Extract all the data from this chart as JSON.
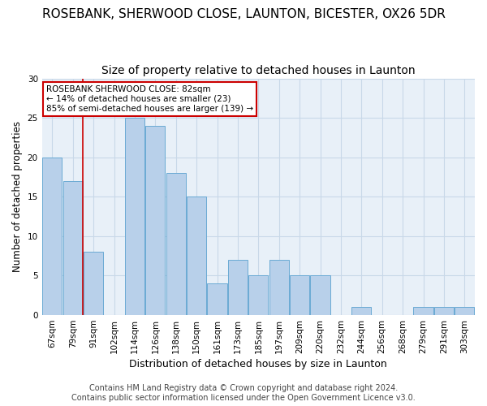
{
  "title1": "ROSEBANK, SHERWOOD CLOSE, LAUNTON, BICESTER, OX26 5DR",
  "title2": "Size of property relative to detached houses in Launton",
  "xlabel": "Distribution of detached houses by size in Launton",
  "ylabel": "Number of detached properties",
  "categories": [
    "67sqm",
    "79sqm",
    "91sqm",
    "102sqm",
    "114sqm",
    "126sqm",
    "138sqm",
    "150sqm",
    "161sqm",
    "173sqm",
    "185sqm",
    "197sqm",
    "209sqm",
    "220sqm",
    "232sqm",
    "244sqm",
    "256sqm",
    "268sqm",
    "279sqm",
    "291sqm",
    "303sqm"
  ],
  "values": [
    20,
    17,
    8,
    0,
    25,
    24,
    18,
    15,
    4,
    7,
    5,
    7,
    5,
    5,
    0,
    1,
    0,
    0,
    1,
    1,
    1
  ],
  "bar_color": "#b8d0ea",
  "bar_edge_color": "#6aaad4",
  "annotation_box_text": "ROSEBANK SHERWOOD CLOSE: 82sqm\n← 14% of detached houses are smaller (23)\n85% of semi-detached houses are larger (139) →",
  "annotation_box_color": "#ffffff",
  "annotation_box_edge_color": "#cc0000",
  "vline_color": "#cc0000",
  "vline_x": 1.5,
  "ylim": [
    0,
    30
  ],
  "yticks": [
    0,
    5,
    10,
    15,
    20,
    25,
    30
  ],
  "background_color": "#e8f0f8",
  "footer_text": "Contains HM Land Registry data © Crown copyright and database right 2024.\nContains public sector information licensed under the Open Government Licence v3.0.",
  "title1_fontsize": 11,
  "title2_fontsize": 10,
  "xlabel_fontsize": 9,
  "ylabel_fontsize": 8.5,
  "tick_fontsize": 7.5,
  "footer_fontsize": 7,
  "grid_color": "#c8d8e8"
}
